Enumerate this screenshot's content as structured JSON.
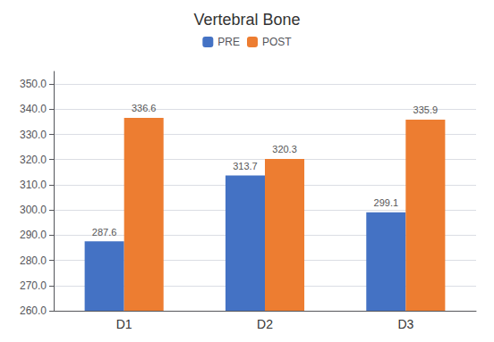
{
  "chart_data": {
    "type": "bar",
    "title": "Vertebral Bone",
    "categories": [
      "D1",
      "D2",
      "D3"
    ],
    "series": [
      {
        "name": "PRE",
        "color": "#4472C4",
        "values": [
          287.6,
          313.7,
          299.1
        ]
      },
      {
        "name": "POST",
        "color": "#ED7D31",
        "values": [
          336.6,
          320.3,
          335.9
        ]
      }
    ],
    "ylim": [
      260.0,
      355.0
    ],
    "yticks": [
      {
        "value": 260,
        "label": "260.0"
      },
      {
        "value": 270,
        "label": "270.0"
      },
      {
        "value": 280,
        "label": "280.0"
      },
      {
        "value": 290,
        "label": "290.0"
      },
      {
        "value": 300,
        "label": "300.0"
      },
      {
        "value": 310,
        "label": "310.0"
      },
      {
        "value": 320,
        "label": "320.0"
      },
      {
        "value": 330,
        "label": "330.0"
      },
      {
        "value": 340,
        "label": "340.0"
      },
      {
        "value": 350,
        "label": "350.0"
      }
    ],
    "grid": true,
    "legend": "top",
    "data_labels": true
  }
}
